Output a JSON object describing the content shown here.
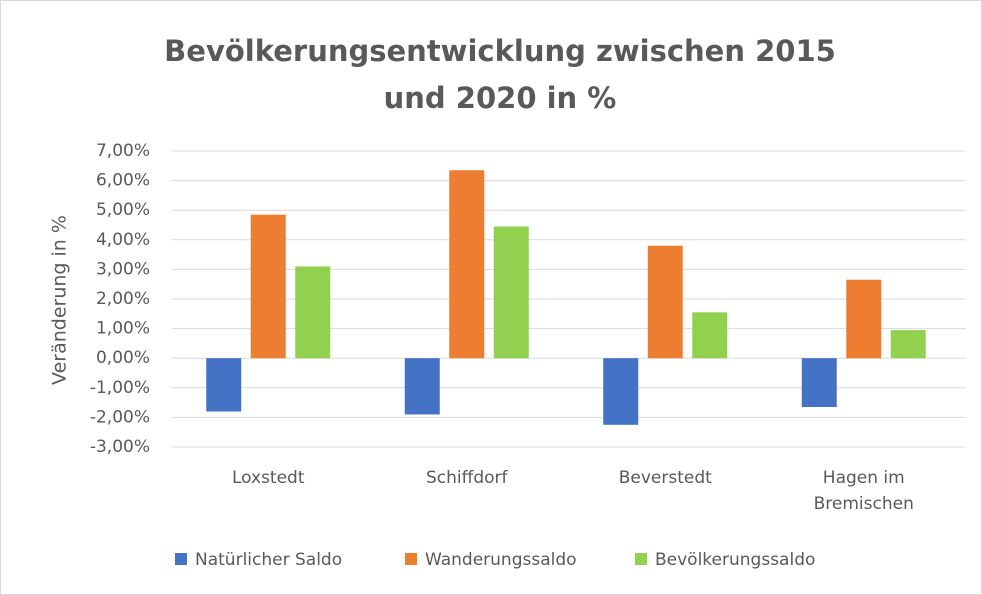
{
  "chart_data": {
    "type": "bar",
    "title": "Bevölkerungsentwicklung zwischen 2015 und 2020 in %",
    "y_label": "Veränderung in %",
    "categories": [
      "Loxstedt",
      "Schiffdorf",
      "Beverstedt",
      "Hagen im Bremischen"
    ],
    "series": [
      {
        "name": "Natürlicher Saldo",
        "color": "#4472c4",
        "values": [
          -1.8,
          -1.9,
          -2.25,
          -1.65
        ]
      },
      {
        "name": "Wanderungssaldo",
        "color": "#ed7d31",
        "values": [
          4.85,
          6.35,
          3.8,
          2.65
        ]
      },
      {
        "name": "Bevölkerungssaldo",
        "color": "#92d050",
        "values": [
          3.1,
          4.45,
          1.55,
          0.95
        ]
      }
    ],
    "ylim": [
      -3,
      7
    ],
    "yticks": [
      {
        "value": -3,
        "label": "-3,00%"
      },
      {
        "value": -2,
        "label": "-2,00%"
      },
      {
        "value": -1,
        "label": "-1,00%"
      },
      {
        "value": 0,
        "label": "0,00%"
      },
      {
        "value": 1,
        "label": "1,00%"
      },
      {
        "value": 2,
        "label": "2,00%"
      },
      {
        "value": 3,
        "label": "3,00%"
      },
      {
        "value": 4,
        "label": "4,00%"
      },
      {
        "value": 5,
        "label": "5,00%"
      },
      {
        "value": 6,
        "label": "6,00%"
      },
      {
        "value": 7,
        "label": "7,00%"
      }
    ],
    "grid": true
  }
}
